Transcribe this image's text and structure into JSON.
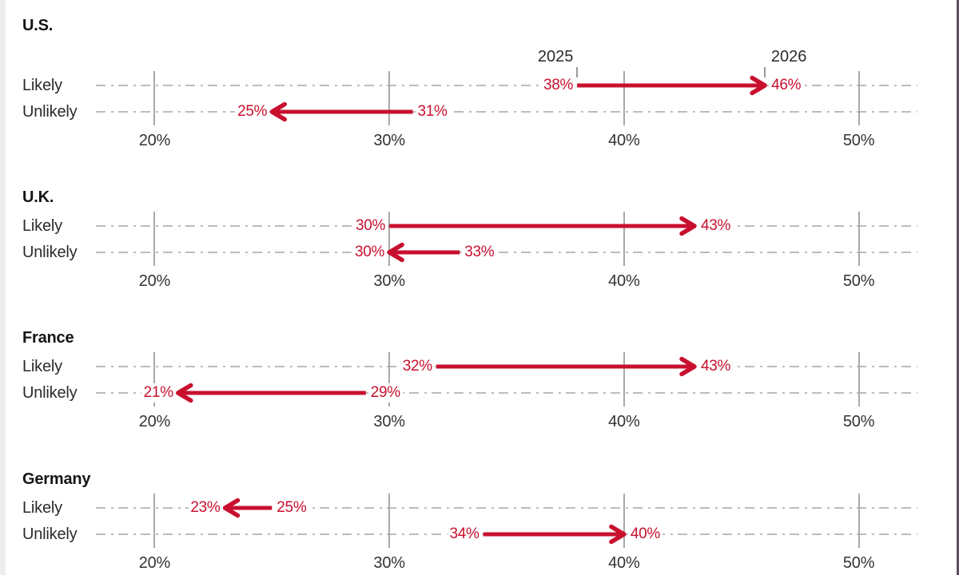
{
  "chart_data": {
    "type": "arrow-dumbbell",
    "description": "Change in likelihood responses from 2025 to 2026 by country",
    "axis": {
      "domain": [
        17.5,
        52.5
      ],
      "ticks": [
        20,
        30,
        40,
        50
      ],
      "tick_labels": [
        "20%",
        "30%",
        "40%",
        "50%"
      ],
      "grid": "dashed-horizontal"
    },
    "year_start_label": "2025",
    "year_end_label": "2026",
    "colors": {
      "arrow": "#c8102e",
      "value_label": "#c8102e",
      "grid": "#bcbcbc",
      "tick": "#a9a9a9",
      "text": "#2b2b2b",
      "title": "#141414"
    },
    "groups": [
      {
        "country": "U.S.",
        "rows": [
          {
            "label": "Likely",
            "from": 38,
            "to": 46,
            "from_label": "38%",
            "to_label": "46%"
          },
          {
            "label": "Unlikely",
            "from": 31,
            "to": 25,
            "from_label": "31%",
            "to_label": "25%"
          }
        ]
      },
      {
        "country": "U.K.",
        "rows": [
          {
            "label": "Likely",
            "from": 30,
            "to": 43,
            "from_label": "30%",
            "to_label": "43%"
          },
          {
            "label": "Unlikely",
            "from": 33,
            "to": 30,
            "from_label": "33%",
            "to_label": "30%"
          }
        ]
      },
      {
        "country": "France",
        "rows": [
          {
            "label": "Likely",
            "from": 32,
            "to": 43,
            "from_label": "32%",
            "to_label": "43%"
          },
          {
            "label": "Unlikely",
            "from": 29,
            "to": 21,
            "from_label": "29%",
            "to_label": "21%"
          }
        ]
      },
      {
        "country": "Germany",
        "rows": [
          {
            "label": "Likely",
            "from": 25,
            "to": 23,
            "from_label": "25%",
            "to_label": "23%"
          },
          {
            "label": "Unlikely",
            "from": 34,
            "to": 40,
            "from_label": "34%",
            "to_label": "40%"
          }
        ]
      }
    ]
  }
}
